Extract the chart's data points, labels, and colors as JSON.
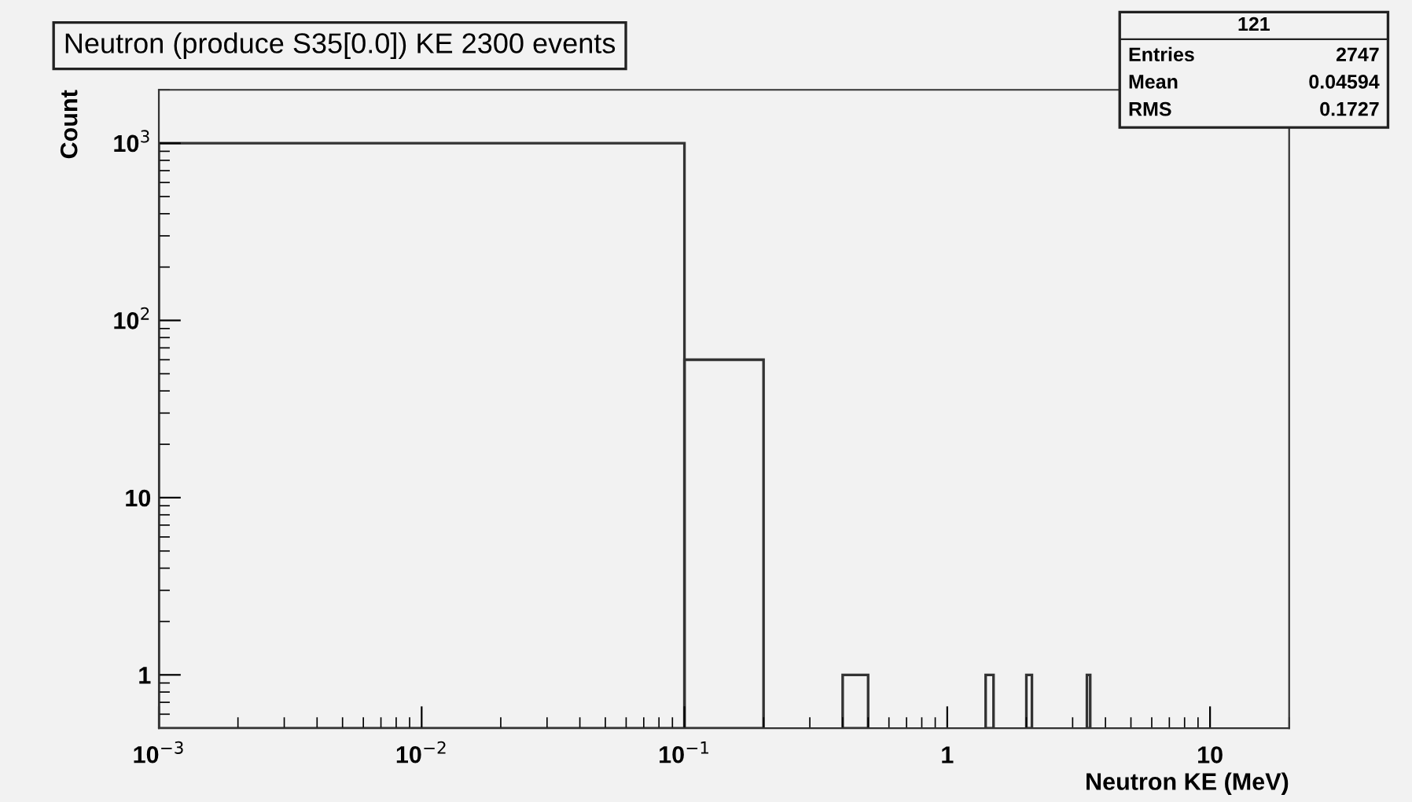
{
  "chart_data": {
    "type": "histogram",
    "title": "Neutron (produce S35[0.0]) KE 2300 events",
    "xlabel": "Neutron KE (MeV)",
    "ylabel": "Count",
    "bins": [
      0.001,
      0.1,
      0.2,
      0.4,
      0.5,
      1.4,
      1.5,
      2.0,
      2.1,
      3.4,
      3.5
    ],
    "values": [
      1000,
      60,
      null,
      1,
      null,
      1,
      null,
      1,
      null,
      1
    ],
    "color": "#333333",
    "log": "xy",
    "xlim": [
      0.001,
      20
    ],
    "xticks": [
      {
        "value": 0.001,
        "label": "10$^{−3}$"
      },
      {
        "value": 0.01,
        "label": "10$^{−2}$"
      },
      {
        "value": 0.1,
        "label": "10$^{−1}$"
      },
      1,
      10
    ],
    "ylim": [
      0.5,
      2000
    ],
    "yticks": [
      1,
      10,
      {
        "value": 100,
        "label": "10$^{2}$"
      },
      {
        "value": 1000,
        "label": "10$^{3}$"
      }
    ],
    "grid": false,
    "legend": false,
    "annotations": [
      "121",
      "Entries",
      "2747",
      "Mean",
      "0.04594",
      "RMS",
      "0.1727"
    ]
  }
}
